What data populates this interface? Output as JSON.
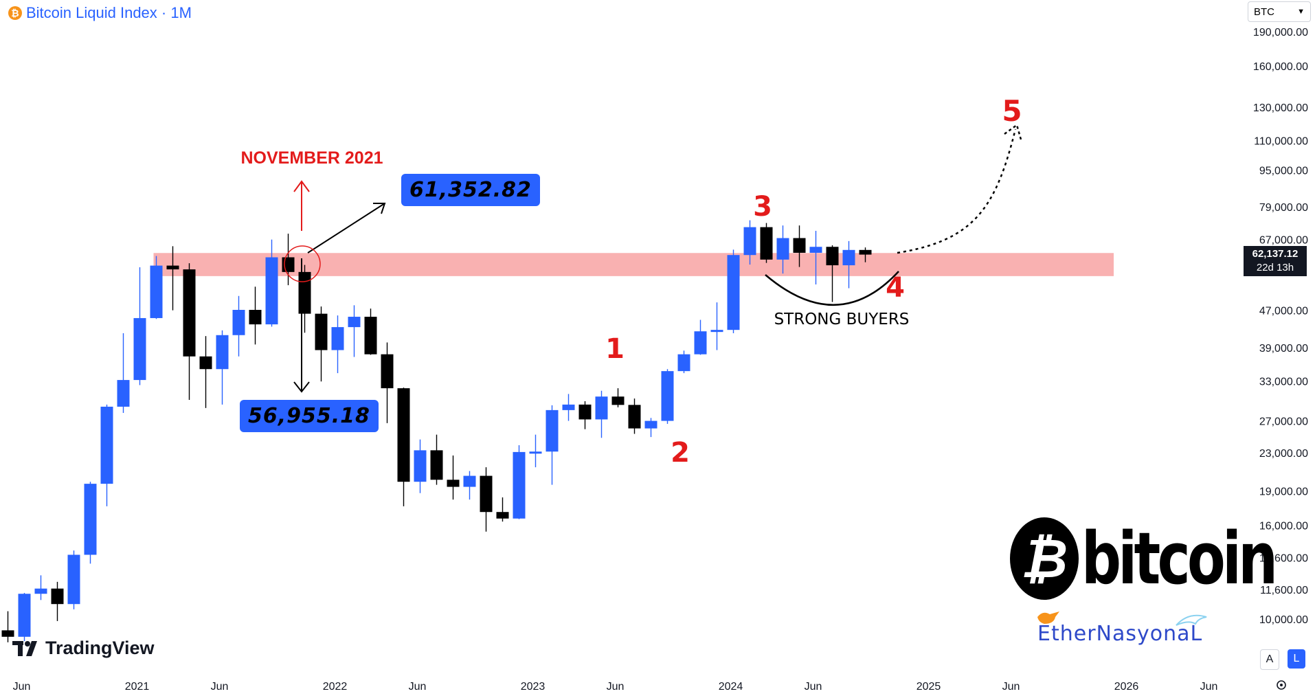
{
  "header": {
    "title": "Bitcoin Liquid Index · 1M",
    "currency": "BTC"
  },
  "colors": {
    "up": "#2962ff",
    "down": "#000000",
    "zone": "#f8a9a9",
    "annotation_red": "#e31b1b"
  },
  "chart_data": {
    "type": "candlestick",
    "title": "Bitcoin Liquid Index · 1M",
    "y_scale": "log",
    "ylim": [
      9000,
      200000
    ],
    "y_ticks": [
      10000,
      11600,
      13600,
      16000,
      19000,
      23000,
      27000,
      33000,
      39000,
      47000,
      56000,
      67000,
      79000,
      95000,
      110000,
      130000,
      160000,
      190000
    ],
    "y_tick_labels": [
      "10,000.00",
      "11,600.00",
      "13,600.00",
      "16,000.00",
      "19,000.00",
      "23,000.00",
      "27,000.00",
      "33,000.00",
      "39,000.00",
      "47,000.00",
      "",
      "67,000.00",
      "79,000.00",
      "95,000.00",
      "110,000.00",
      "130,000.00",
      "160,000.00",
      "190,000.00"
    ],
    "x_ticks": [
      {
        "date": "2020-06",
        "label": "Jun"
      },
      {
        "date": "2021-01",
        "label": "2021"
      },
      {
        "date": "2021-06",
        "label": "Jun"
      },
      {
        "date": "2022-01",
        "label": "2022"
      },
      {
        "date": "2022-06",
        "label": "Jun"
      },
      {
        "date": "2023-01",
        "label": "2023"
      },
      {
        "date": "2023-06",
        "label": "Jun"
      },
      {
        "date": "2024-01",
        "label": "2024"
      },
      {
        "date": "2024-06",
        "label": "Jun"
      },
      {
        "date": "2025-01",
        "label": "2025"
      },
      {
        "date": "2025-06",
        "label": "Jun"
      },
      {
        "date": "2026-01",
        "label": "2026"
      },
      {
        "date": "2026-06",
        "label": "Jun"
      }
    ],
    "candles": [
      {
        "date": "2020-06",
        "o": 9450,
        "h": 10400,
        "l": 8900,
        "c": 9150
      },
      {
        "date": "2020-07",
        "o": 9150,
        "h": 11400,
        "l": 8950,
        "c": 11350
      },
      {
        "date": "2020-08",
        "o": 11350,
        "h": 12450,
        "l": 11000,
        "c": 11650
      },
      {
        "date": "2020-09",
        "o": 11650,
        "h": 12050,
        "l": 9900,
        "c": 10780
      },
      {
        "date": "2020-10",
        "o": 10780,
        "h": 14100,
        "l": 10500,
        "c": 13800
      },
      {
        "date": "2020-11",
        "o": 13800,
        "h": 19900,
        "l": 13200,
        "c": 19700
      },
      {
        "date": "2020-12",
        "o": 19700,
        "h": 29300,
        "l": 17600,
        "c": 28990
      },
      {
        "date": "2021-01",
        "o": 28990,
        "h": 41900,
        "l": 28100,
        "c": 33140
      },
      {
        "date": "2021-02",
        "o": 33140,
        "h": 58300,
        "l": 32300,
        "c": 45200
      },
      {
        "date": "2021-03",
        "o": 45200,
        "h": 61700,
        "l": 45000,
        "c": 58800
      },
      {
        "date": "2021-04",
        "o": 58800,
        "h": 64800,
        "l": 47000,
        "c": 57700
      },
      {
        "date": "2021-05",
        "o": 57700,
        "h": 59500,
        "l": 30000,
        "c": 37300
      },
      {
        "date": "2021-06",
        "o": 37300,
        "h": 41300,
        "l": 28800,
        "c": 35000
      },
      {
        "date": "2021-07",
        "o": 35000,
        "h": 42500,
        "l": 29300,
        "c": 41500
      },
      {
        "date": "2021-08",
        "o": 41500,
        "h": 50500,
        "l": 37300,
        "c": 47100
      },
      {
        "date": "2021-09",
        "o": 47100,
        "h": 52900,
        "l": 39600,
        "c": 43800
      },
      {
        "date": "2021-10",
        "o": 43800,
        "h": 67000,
        "l": 43300,
        "c": 61300
      },
      {
        "date": "2021-11",
        "o": 61300,
        "h": 69000,
        "l": 53300,
        "c": 56950
      },
      {
        "date": "2021-12",
        "o": 56950,
        "h": 59000,
        "l": 42000,
        "c": 46200
      },
      {
        "date": "2022-01",
        "o": 46200,
        "h": 47900,
        "l": 32900,
        "c": 38500
      },
      {
        "date": "2022-02",
        "o": 38500,
        "h": 45800,
        "l": 34300,
        "c": 43200
      },
      {
        "date": "2022-03",
        "o": 43200,
        "h": 48200,
        "l": 37200,
        "c": 45500
      },
      {
        "date": "2022-04",
        "o": 45500,
        "h": 47400,
        "l": 37600,
        "c": 37700
      },
      {
        "date": "2022-05",
        "o": 37700,
        "h": 40000,
        "l": 26700,
        "c": 31800
      },
      {
        "date": "2022-06",
        "o": 31800,
        "h": 31900,
        "l": 17600,
        "c": 19900
      },
      {
        "date": "2022-07",
        "o": 19900,
        "h": 24600,
        "l": 18800,
        "c": 23300
      },
      {
        "date": "2022-08",
        "o": 23300,
        "h": 25200,
        "l": 19600,
        "c": 20100
      },
      {
        "date": "2022-09",
        "o": 20100,
        "h": 22700,
        "l": 18200,
        "c": 19400
      },
      {
        "date": "2022-10",
        "o": 19400,
        "h": 21000,
        "l": 18200,
        "c": 20500
      },
      {
        "date": "2022-11",
        "o": 20500,
        "h": 21400,
        "l": 15500,
        "c": 17100
      },
      {
        "date": "2022-12",
        "o": 17100,
        "h": 18400,
        "l": 16300,
        "c": 16550
      },
      {
        "date": "2023-01",
        "o": 16550,
        "h": 23900,
        "l": 16500,
        "c": 23100
      },
      {
        "date": "2023-02",
        "o": 23100,
        "h": 25200,
        "l": 21400,
        "c": 23150
      },
      {
        "date": "2023-03",
        "o": 23150,
        "h": 29200,
        "l": 19600,
        "c": 28500
      },
      {
        "date": "2023-04",
        "o": 28500,
        "h": 30900,
        "l": 27000,
        "c": 29300
      },
      {
        "date": "2023-05",
        "o": 29300,
        "h": 29800,
        "l": 25900,
        "c": 27200
      },
      {
        "date": "2023-06",
        "o": 27200,
        "h": 31400,
        "l": 24800,
        "c": 30500
      },
      {
        "date": "2023-07",
        "o": 30500,
        "h": 31800,
        "l": 28900,
        "c": 29250
      },
      {
        "date": "2023-08",
        "o": 29250,
        "h": 30200,
        "l": 25300,
        "c": 26000
      },
      {
        "date": "2023-09",
        "o": 26000,
        "h": 27400,
        "l": 24900,
        "c": 27000
      },
      {
        "date": "2023-10",
        "o": 27000,
        "h": 35000,
        "l": 26600,
        "c": 34650
      },
      {
        "date": "2023-11",
        "o": 34650,
        "h": 38400,
        "l": 34300,
        "c": 37700
      },
      {
        "date": "2023-12",
        "o": 37700,
        "h": 44800,
        "l": 37600,
        "c": 42300
      },
      {
        "date": "2024-01",
        "o": 42300,
        "h": 48900,
        "l": 38500,
        "c": 42600
      },
      {
        "date": "2024-02",
        "o": 42600,
        "h": 63700,
        "l": 41900,
        "c": 62000
      },
      {
        "date": "2024-03",
        "o": 62000,
        "h": 73800,
        "l": 59100,
        "c": 71300
      },
      {
        "date": "2024-04",
        "o": 71300,
        "h": 72800,
        "l": 59600,
        "c": 60600
      },
      {
        "date": "2024-05",
        "o": 60600,
        "h": 71900,
        "l": 56500,
        "c": 67500
      },
      {
        "date": "2024-06",
        "o": 67500,
        "h": 71900,
        "l": 58400,
        "c": 62700
      },
      {
        "date": "2024-07",
        "o": 62700,
        "h": 70000,
        "l": 53500,
        "c": 64600
      },
      {
        "date": "2024-08",
        "o": 64600,
        "h": 65100,
        "l": 49000,
        "c": 58900
      },
      {
        "date": "2024-09",
        "o": 58900,
        "h": 66500,
        "l": 52500,
        "c": 63600
      },
      {
        "date": "2024-10",
        "o": 63600,
        "h": 64400,
        "l": 59800,
        "c": 62137
      }
    ],
    "resistance_zone": {
      "from": 56950,
      "to": 61350,
      "start": "2021-03",
      "end": "2025-03"
    },
    "last_price": "62,137.12",
    "countdown": "22d 13h",
    "annotations": {
      "november": "NOVEMBER 2021",
      "high_box": "61,352.82",
      "low_box": "56,955.18",
      "waves": [
        "1",
        "2",
        "3",
        "4",
        "5"
      ],
      "strong_buyers": "STRONG BUYERS"
    }
  },
  "branding": {
    "tradingview": "TradingView",
    "bitcoin_logo": "bitcoin",
    "ether": "EtherNasyonaL"
  },
  "footer": {
    "scale_auto": "A",
    "scale_log": "L"
  }
}
